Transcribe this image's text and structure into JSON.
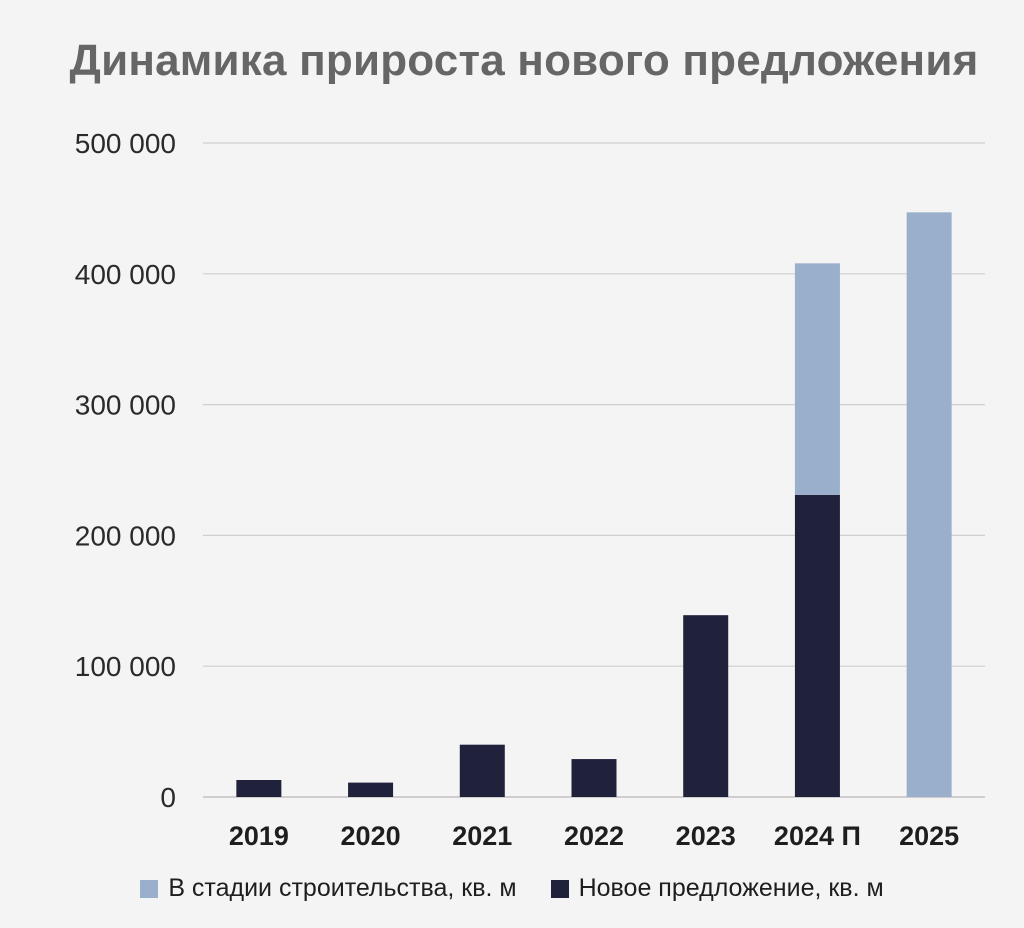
{
  "chart_data": {
    "type": "bar",
    "stacked": true,
    "title": "Динамика прироста нового предложения",
    "xlabel": "",
    "ylabel": "",
    "categories": [
      "2019",
      "2020",
      "2021",
      "2022",
      "2023",
      "2024 П",
      "2025"
    ],
    "series": [
      {
        "name": "Новое предложение, кв. м",
        "color": "#20213a",
        "values": [
          13000,
          11000,
          40000,
          29000,
          139000,
          231000,
          0
        ]
      },
      {
        "name": "В стадии строительства, кв. м",
        "color": "#9aafcb",
        "values": [
          0,
          0,
          0,
          0,
          0,
          177000,
          447000
        ]
      }
    ],
    "ylim": [
      0,
      500000
    ],
    "yticks": [
      0,
      100000,
      200000,
      300000,
      400000,
      500000
    ],
    "ytick_labels": [
      "0",
      "100 000",
      "200 000",
      "300 000",
      "400 000",
      "500 000"
    ],
    "grid": true,
    "legend_position": "bottom",
    "legend_order": [
      "В стадии строительства, кв. м",
      "Новое предложение, кв. м"
    ]
  }
}
